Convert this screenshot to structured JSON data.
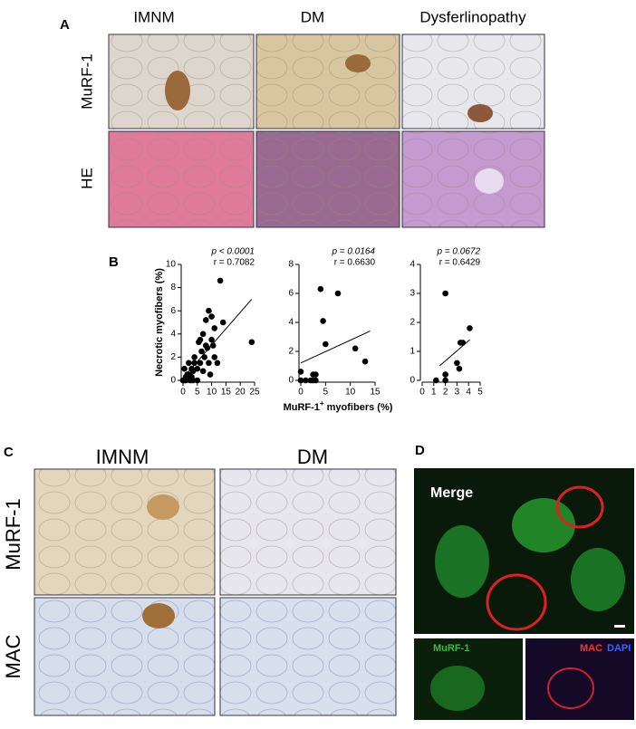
{
  "panels": {
    "a": {
      "label": "A",
      "columns": [
        "IMNM",
        "DM",
        "Dysferlinopathy"
      ],
      "rows": [
        "MuRF-1",
        "HE"
      ]
    },
    "b": {
      "label": "B"
    },
    "c": {
      "label": "C",
      "columns": [
        "IMNM",
        "DM"
      ],
      "rows": [
        "MuRF-1",
        "MAC"
      ]
    },
    "d": {
      "label": "D",
      "merge": "Merge",
      "green": "MuRF-1",
      "red": "MAC",
      "blue": "DAPI"
    }
  },
  "chart_data": [
    {
      "type": "scatter",
      "p_label": "p < 0.0001",
      "r_label": "r = 0.7082",
      "ylabel": "Necrotic myofibers (%)",
      "color": "#000000",
      "x": [
        0,
        0.5,
        1,
        1,
        1.5,
        2,
        2,
        2.5,
        3,
        3,
        3.5,
        4,
        4,
        5,
        5,
        5.5,
        6,
        6,
        6.5,
        7,
        7,
        7.5,
        8,
        8,
        8.5,
        9,
        9,
        9.5,
        10,
        10,
        10.5,
        11,
        11,
        12,
        13,
        14,
        0.5,
        1.5,
        3.5,
        24
      ],
      "values": [
        0,
        0,
        0.3,
        0,
        0.2,
        0.5,
        1.5,
        0,
        0.3,
        1,
        0.8,
        1.5,
        2,
        1,
        0,
        3.3,
        1.5,
        3.5,
        2.5,
        4,
        0.8,
        2,
        5.2,
        3,
        2.8,
        6,
        1.5,
        0.5,
        5.5,
        3.5,
        3,
        2,
        4.5,
        1.5,
        8.6,
        5,
        1,
        0.5,
        0,
        3.3
      ],
      "fit_x": [
        0,
        24
      ],
      "fit_y": [
        0.2,
        7
      ],
      "xlim": [
        0,
        25
      ],
      "ylim": [
        0,
        10
      ],
      "xticks": [
        0,
        5,
        10,
        15,
        20,
        25
      ],
      "yticks": [
        0,
        2,
        4,
        6,
        8,
        10
      ]
    },
    {
      "type": "scatter",
      "p_label": "p = 0.0164",
      "r_label": "r = 0.6630",
      "xlabel": "MuRF-1",
      "xlabel_sup": "+",
      "xlabel_rest": " myofibers (%)",
      "color": "#000000",
      "x": [
        0,
        0,
        1,
        2,
        2.5,
        2.5,
        3,
        3,
        4,
        4.5,
        5,
        7.5,
        11,
        13
      ],
      "values": [
        0.6,
        0,
        0,
        0,
        0.4,
        0,
        0.4,
        0,
        6.3,
        4.1,
        2.5,
        6,
        2.2,
        1.3
      ],
      "fit_x": [
        0,
        14
      ],
      "fit_y": [
        1.2,
        3.4
      ],
      "xlim": [
        0,
        15
      ],
      "ylim": [
        0,
        8
      ],
      "xticks": [
        0,
        5,
        10,
        15
      ],
      "yticks": [
        0,
        2,
        4,
        6,
        8
      ]
    },
    {
      "type": "scatter",
      "p_label": "p = 0.0672",
      "r_label": "r = 0.6429",
      "color": "#000000",
      "x": [
        1.2,
        2,
        2,
        2,
        3,
        3.2,
        3.3,
        3.5,
        4.1
      ],
      "values": [
        0,
        0.2,
        3,
        0,
        0.6,
        0.4,
        1.3,
        1.3,
        1.8
      ],
      "fit_x": [
        1.5,
        4.1
      ],
      "fit_y": [
        0.5,
        1.4
      ],
      "xlim": [
        0,
        5
      ],
      "ylim": [
        0,
        4
      ],
      "xticks": [
        0,
        1,
        2,
        3,
        4,
        5
      ],
      "yticks": [
        0,
        1,
        2,
        3,
        4
      ]
    }
  ]
}
